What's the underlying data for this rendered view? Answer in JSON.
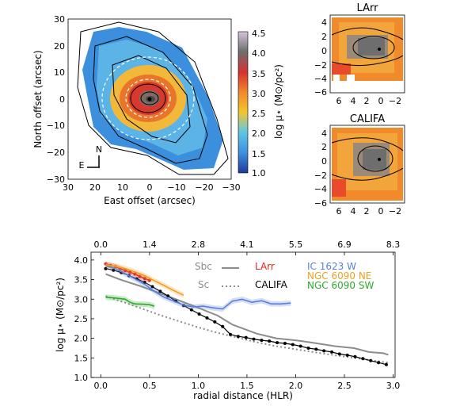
{
  "colors": {
    "sbc": "#8c8c8c",
    "sc": "#8c8c8c",
    "larr": "#e8251f",
    "califa": "#000000",
    "ic1623w": "#5b7fd8",
    "ngc6090ne": "#f0a020",
    "ngc6090sw": "#2fa82f"
  },
  "map_panel": {
    "xlabel": "East offset (arcsec)",
    "ylabel": "North offset (arcsec)",
    "xticks": [
      "30",
      "20",
      "10",
      "0",
      "−10",
      "−20",
      "−30"
    ],
    "yticks": [
      "30",
      "20",
      "10",
      "0",
      "−10",
      "−20",
      "−30"
    ],
    "xlim": [
      30,
      -30
    ],
    "ylim": [
      -30,
      30
    ],
    "compass_n": "N",
    "compass_e": "E"
  },
  "colorbar": {
    "ticks": [
      "4.5",
      "4.0",
      "3.5",
      "3.0",
      "2.5",
      "2.0",
      "1.5",
      "1.0"
    ],
    "range": [
      1.0,
      4.5
    ],
    "label": "log μ⋆ (M⊙/pc²)"
  },
  "small_panels": [
    {
      "title": "LArr",
      "xticks": [
        "6",
        "4",
        "2",
        "0",
        "−2"
      ],
      "yticks": [
        "4",
        "2",
        "0",
        "−2",
        "−4",
        "−6"
      ],
      "xlim": [
        7,
        -3.5
      ],
      "ylim": [
        -6,
        5
      ]
    },
    {
      "title": "CALIFA",
      "xticks": [
        "6",
        "4",
        "2",
        "0",
        "−2"
      ],
      "yticks": [
        "4",
        "2",
        "0",
        "−2",
        "−4",
        "−6"
      ],
      "xlim": [
        7,
        -3.5
      ],
      "ylim": [
        -6,
        5
      ]
    }
  ],
  "chart_data": {
    "type": "line",
    "xlabel": "radial distance (HLR)",
    "ylabel": "log μ⋆ (M⊙/pc²)",
    "xlim": [
      -0.1,
      3.02
    ],
    "ylim": [
      1.0,
      4.2
    ],
    "xticks": [
      "0.0",
      "0.5",
      "1.0",
      "1.5",
      "2.0",
      "2.5",
      "3.0"
    ],
    "yticks": [
      "1.0",
      "1.5",
      "2.0",
      "2.5",
      "3.0",
      "3.5",
      "4.0"
    ],
    "top_xticks": [
      "0.0",
      "1.4",
      "2.8",
      "4.1",
      "5.5",
      "6.9",
      "8.3"
    ],
    "legend": {
      "sbc": "Sbc",
      "sc": "Sc",
      "larr": "LArr",
      "califa": "CALIFA",
      "ic1623w": "IC 1623 W",
      "ngc6090ne": "NGC 6090 NE",
      "ngc6090sw": "NGC 6090 SW"
    },
    "series": [
      {
        "name": "Sbc",
        "style": "solid-gray",
        "x": [
          0.05,
          0.2,
          0.4,
          0.6,
          0.8,
          1.0,
          1.2,
          1.35,
          1.6,
          1.8,
          2.0,
          2.2,
          2.4,
          2.6,
          2.75,
          2.9,
          2.95
        ],
        "y": [
          3.64,
          3.5,
          3.34,
          3.16,
          2.97,
          2.78,
          2.58,
          2.35,
          2.12,
          2.0,
          1.95,
          1.88,
          1.8,
          1.75,
          1.65,
          1.62,
          1.58
        ]
      },
      {
        "name": "Sc",
        "style": "dotted-gray",
        "x": [
          0.05,
          0.2,
          0.4,
          0.6,
          0.8,
          1.0,
          1.2,
          1.4,
          1.6,
          1.8,
          2.0,
          2.2,
          2.4,
          2.6,
          2.8,
          2.95
        ],
        "y": [
          3.08,
          2.95,
          2.78,
          2.6,
          2.44,
          2.28,
          2.14,
          2.02,
          1.9,
          1.8,
          1.72,
          1.64,
          1.57,
          1.5,
          1.43,
          1.38
        ]
      },
      {
        "name": "LArr",
        "style": "solid-red",
        "x": [
          0.05,
          0.1,
          0.15,
          0.2,
          0.25,
          0.3,
          0.35,
          0.4,
          0.45,
          0.5
        ],
        "y": [
          3.9,
          3.86,
          3.83,
          3.78,
          3.73,
          3.69,
          3.64,
          3.58,
          3.53,
          3.48
        ]
      },
      {
        "name": "CALIFA",
        "style": "black-dots",
        "x": [
          0.05,
          0.13,
          0.21,
          0.29,
          0.37,
          0.45,
          0.53,
          0.61,
          0.69,
          0.77,
          0.85,
          0.93,
          1.01,
          1.09,
          1.17,
          1.25,
          1.33,
          1.41,
          1.49,
          1.57,
          1.65,
          1.73,
          1.81,
          1.89,
          1.97,
          2.05,
          2.13,
          2.21,
          2.29,
          2.37,
          2.45,
          2.53,
          2.61,
          2.69,
          2.77,
          2.85,
          2.93
        ],
        "y": [
          3.78,
          3.74,
          3.68,
          3.6,
          3.52,
          3.43,
          3.32,
          3.2,
          3.08,
          2.95,
          2.84,
          2.73,
          2.62,
          2.52,
          2.42,
          2.3,
          2.1,
          2.05,
          2.02,
          1.98,
          1.95,
          1.93,
          1.89,
          1.87,
          1.84,
          1.8,
          1.75,
          1.72,
          1.68,
          1.65,
          1.6,
          1.57,
          1.53,
          1.48,
          1.43,
          1.38,
          1.33
        ]
      },
      {
        "name": "IC 1623 W",
        "style": "band-blue",
        "x": [
          0.05,
          0.15,
          0.25,
          0.35,
          0.45,
          0.55,
          0.65,
          0.75,
          0.85,
          0.95,
          1.05,
          1.15,
          1.25,
          1.35,
          1.45,
          1.55,
          1.65,
          1.75,
          1.85,
          1.95
        ],
        "y": [
          3.85,
          3.78,
          3.65,
          3.52,
          3.38,
          3.2,
          3.05,
          2.95,
          2.85,
          2.8,
          2.82,
          2.78,
          2.75,
          2.95,
          3.0,
          2.92,
          2.96,
          2.88,
          2.88,
          2.9
        ]
      },
      {
        "name": "NGC 6090 NE",
        "style": "band-orange",
        "x": [
          0.05,
          0.15,
          0.25,
          0.35,
          0.45,
          0.55,
          0.65,
          0.75,
          0.85
        ],
        "y": [
          3.88,
          3.84,
          3.78,
          3.7,
          3.6,
          3.47,
          3.35,
          3.22,
          3.1
        ]
      },
      {
        "name": "NGC 6090 SW",
        "style": "band-green",
        "x": [
          0.05,
          0.15,
          0.25,
          0.3,
          0.35,
          0.45,
          0.5,
          0.55
        ],
        "y": [
          3.05,
          3.03,
          3.0,
          2.92,
          2.88,
          2.87,
          2.86,
          2.82
        ]
      }
    ]
  }
}
